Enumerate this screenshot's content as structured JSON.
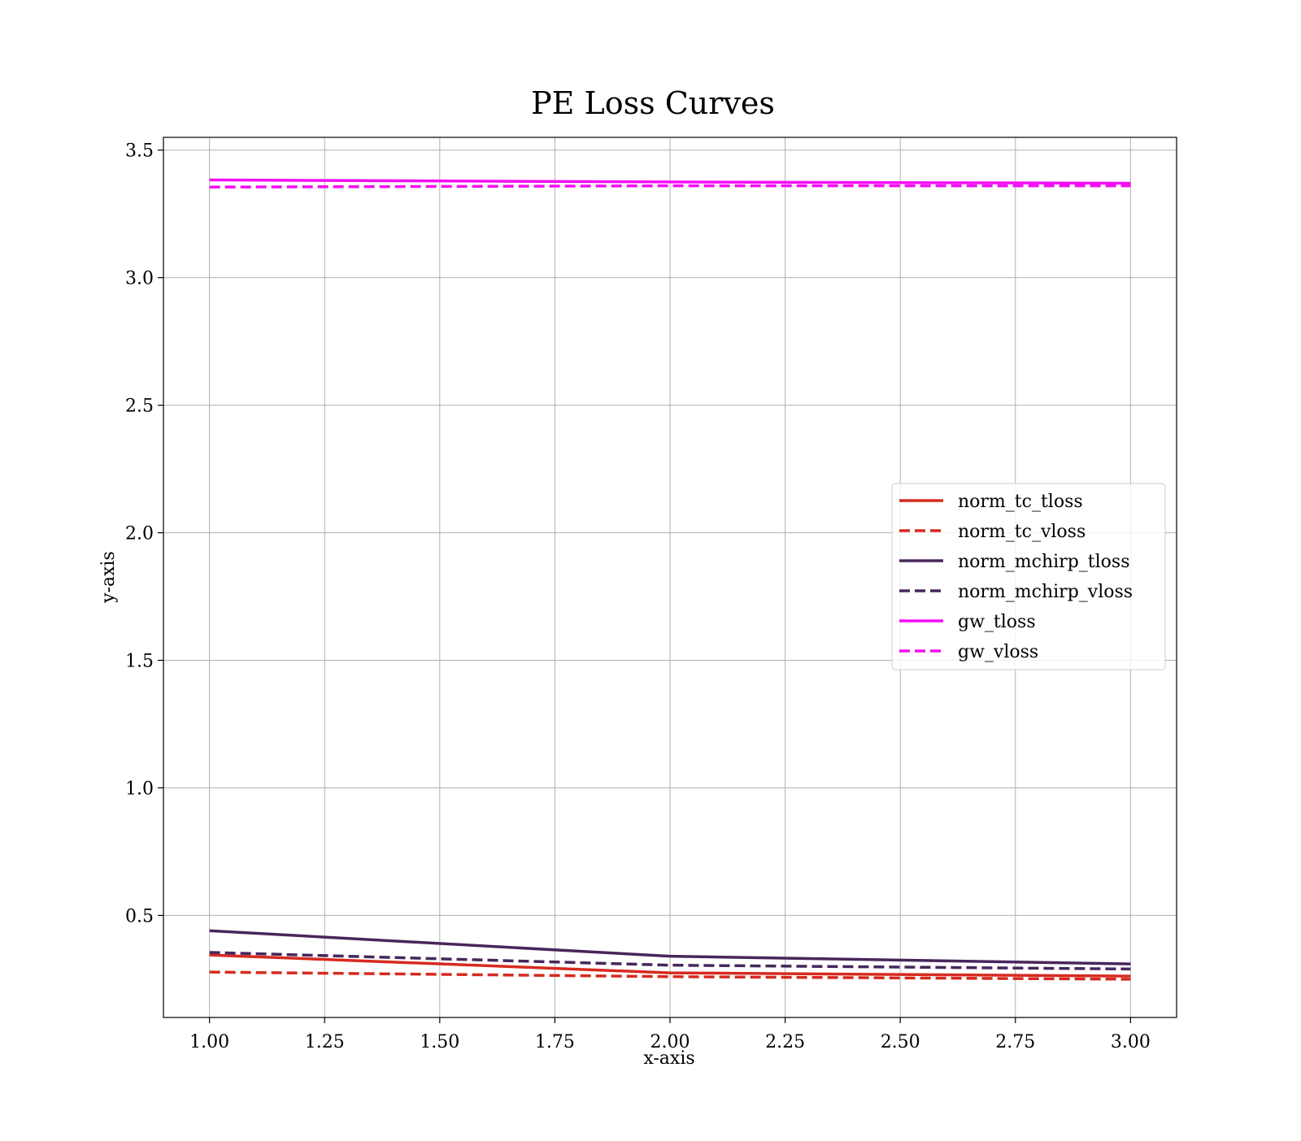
{
  "chart_data": {
    "type": "line",
    "title": "PE Loss Curves",
    "xlabel": "x-axis",
    "ylabel": "y-axis",
    "xlim": [
      0.9,
      3.1
    ],
    "ylim": [
      0.1,
      3.55
    ],
    "xticks": [
      1.0,
      1.25,
      1.5,
      1.75,
      2.0,
      2.25,
      2.5,
      2.75,
      3.0
    ],
    "xtick_labels": [
      "1.00",
      "1.25",
      "1.50",
      "1.75",
      "2.00",
      "2.25",
      "2.50",
      "2.75",
      "3.00"
    ],
    "yticks": [
      0.5,
      1.0,
      1.5,
      2.0,
      2.5,
      3.0,
      3.5
    ],
    "ytick_labels": [
      "0.5",
      "1.0",
      "1.5",
      "2.0",
      "2.5",
      "3.0",
      "3.5"
    ],
    "grid": true,
    "legend_position": "center-right",
    "x": [
      1,
      2,
      3
    ],
    "series": [
      {
        "name": "norm_tc_tloss",
        "values": [
          0.345,
          0.275,
          0.262
        ],
        "color": "#d62a1f",
        "dash": "solid"
      },
      {
        "name": "norm_tc_vloss",
        "values": [
          0.278,
          0.26,
          0.25
        ],
        "color": "#d62a1f",
        "dash": "dashed"
      },
      {
        "name": "norm_mchirp_tloss",
        "values": [
          0.44,
          0.34,
          0.31
        ],
        "color": "#48265c",
        "dash": "solid"
      },
      {
        "name": "norm_mchirp_vloss",
        "values": [
          0.355,
          0.305,
          0.29
        ],
        "color": "#48265c",
        "dash": "dashed"
      },
      {
        "name": "gw_tloss",
        "values": [
          3.383,
          3.375,
          3.37
        ],
        "color": "#f50df5",
        "dash": "solid"
      },
      {
        "name": "gw_vloss",
        "values": [
          3.355,
          3.36,
          3.36
        ],
        "color": "#f50df5",
        "dash": "dashed"
      }
    ]
  }
}
